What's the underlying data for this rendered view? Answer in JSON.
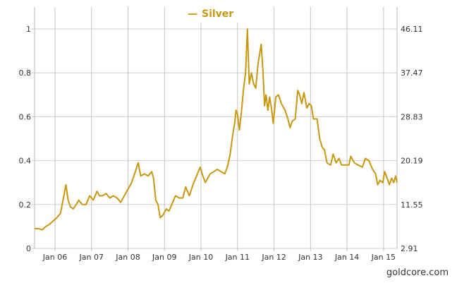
{
  "chart_data": {
    "type": "line",
    "title": "",
    "legend": {
      "label": "Silver",
      "symbol": "—",
      "placement": "top-center"
    },
    "xlabel": "",
    "ylabel": "",
    "x_ticks": [
      {
        "year": 2006,
        "label": "Jan 06"
      },
      {
        "year": 2007,
        "label": "Jan 07"
      },
      {
        "year": 2008,
        "label": "Jan 08"
      },
      {
        "year": 2009,
        "label": "Jan 09"
      },
      {
        "year": 2010,
        "label": "Jan 10"
      },
      {
        "year": 2011,
        "label": "Jan 11"
      },
      {
        "year": 2012,
        "label": "Jan 12"
      },
      {
        "year": 2013,
        "label": "Jan 13"
      },
      {
        "year": 2014,
        "label": "Jan 14"
      },
      {
        "year": 2015,
        "label": "Jan 15"
      }
    ],
    "xlim": [
      2005.44,
      2015.37
    ],
    "ylim": [
      0,
      1
    ],
    "y_ticks_left": [
      "0",
      "0.2",
      "0.4",
      "0.6",
      "0.8",
      "1"
    ],
    "y_ticks_right": [
      "2.91",
      "11.55",
      "20.19",
      "28.83",
      "37.47",
      "46.11"
    ],
    "grid": true,
    "color": "#c9980e",
    "series": [
      {
        "name": "Silver",
        "points": [
          [
            2005.44,
            0.09
          ],
          [
            2005.55,
            0.09
          ],
          [
            2005.65,
            0.085
          ],
          [
            2005.75,
            0.1
          ],
          [
            2005.85,
            0.11
          ],
          [
            2005.95,
            0.125
          ],
          [
            2006.05,
            0.14
          ],
          [
            2006.15,
            0.16
          ],
          [
            2006.22,
            0.22
          ],
          [
            2006.3,
            0.29
          ],
          [
            2006.36,
            0.22
          ],
          [
            2006.42,
            0.19
          ],
          [
            2006.5,
            0.18
          ],
          [
            2006.58,
            0.2
          ],
          [
            2006.65,
            0.22
          ],
          [
            2006.75,
            0.2
          ],
          [
            2006.85,
            0.2
          ],
          [
            2006.95,
            0.24
          ],
          [
            2007.05,
            0.22
          ],
          [
            2007.15,
            0.26
          ],
          [
            2007.22,
            0.24
          ],
          [
            2007.3,
            0.24
          ],
          [
            2007.4,
            0.25
          ],
          [
            2007.5,
            0.23
          ],
          [
            2007.6,
            0.24
          ],
          [
            2007.7,
            0.23
          ],
          [
            2007.8,
            0.21
          ],
          [
            2007.9,
            0.24
          ],
          [
            2008.0,
            0.27
          ],
          [
            2008.1,
            0.3
          ],
          [
            2008.2,
            0.35
          ],
          [
            2008.28,
            0.39
          ],
          [
            2008.35,
            0.33
          ],
          [
            2008.45,
            0.34
          ],
          [
            2008.55,
            0.33
          ],
          [
            2008.65,
            0.35
          ],
          [
            2008.7,
            0.32
          ],
          [
            2008.76,
            0.22
          ],
          [
            2008.82,
            0.2
          ],
          [
            2008.88,
            0.14
          ],
          [
            2008.95,
            0.15
          ],
          [
            2009.05,
            0.18
          ],
          [
            2009.12,
            0.17
          ],
          [
            2009.2,
            0.2
          ],
          [
            2009.3,
            0.24
          ],
          [
            2009.4,
            0.23
          ],
          [
            2009.5,
            0.23
          ],
          [
            2009.58,
            0.28
          ],
          [
            2009.68,
            0.24
          ],
          [
            2009.78,
            0.29
          ],
          [
            2009.9,
            0.34
          ],
          [
            2009.98,
            0.37
          ],
          [
            2010.05,
            0.33
          ],
          [
            2010.12,
            0.3
          ],
          [
            2010.25,
            0.34
          ],
          [
            2010.35,
            0.35
          ],
          [
            2010.45,
            0.36
          ],
          [
            2010.55,
            0.35
          ],
          [
            2010.65,
            0.34
          ],
          [
            2010.72,
            0.37
          ],
          [
            2010.8,
            0.43
          ],
          [
            2010.87,
            0.52
          ],
          [
            2010.92,
            0.57
          ],
          [
            2010.96,
            0.63
          ],
          [
            2011.0,
            0.61
          ],
          [
            2011.05,
            0.54
          ],
          [
            2011.1,
            0.61
          ],
          [
            2011.16,
            0.72
          ],
          [
            2011.22,
            0.8
          ],
          [
            2011.27,
            1.0
          ],
          [
            2011.32,
            0.75
          ],
          [
            2011.38,
            0.8
          ],
          [
            2011.44,
            0.75
          ],
          [
            2011.5,
            0.73
          ],
          [
            2011.56,
            0.84
          ],
          [
            2011.6,
            0.88
          ],
          [
            2011.65,
            0.93
          ],
          [
            2011.7,
            0.8
          ],
          [
            2011.74,
            0.65
          ],
          [
            2011.78,
            0.7
          ],
          [
            2011.83,
            0.63
          ],
          [
            2011.88,
            0.69
          ],
          [
            2011.93,
            0.64
          ],
          [
            2011.98,
            0.57
          ],
          [
            2012.05,
            0.69
          ],
          [
            2012.12,
            0.7
          ],
          [
            2012.2,
            0.66
          ],
          [
            2012.3,
            0.63
          ],
          [
            2012.38,
            0.59
          ],
          [
            2012.44,
            0.55
          ],
          [
            2012.5,
            0.58
          ],
          [
            2012.58,
            0.59
          ],
          [
            2012.65,
            0.72
          ],
          [
            2012.7,
            0.7
          ],
          [
            2012.76,
            0.66
          ],
          [
            2012.82,
            0.71
          ],
          [
            2012.9,
            0.64
          ],
          [
            2012.96,
            0.66
          ],
          [
            2013.02,
            0.65
          ],
          [
            2013.08,
            0.59
          ],
          [
            2013.18,
            0.59
          ],
          [
            2013.25,
            0.5
          ],
          [
            2013.32,
            0.46
          ],
          [
            2013.38,
            0.45
          ],
          [
            2013.45,
            0.39
          ],
          [
            2013.55,
            0.38
          ],
          [
            2013.62,
            0.43
          ],
          [
            2013.7,
            0.39
          ],
          [
            2013.78,
            0.41
          ],
          [
            2013.85,
            0.38
          ],
          [
            2013.95,
            0.38
          ],
          [
            2014.05,
            0.38
          ],
          [
            2014.1,
            0.42
          ],
          [
            2014.2,
            0.39
          ],
          [
            2014.3,
            0.38
          ],
          [
            2014.42,
            0.37
          ],
          [
            2014.5,
            0.41
          ],
          [
            2014.6,
            0.4
          ],
          [
            2014.7,
            0.36
          ],
          [
            2014.78,
            0.34
          ],
          [
            2014.84,
            0.29
          ],
          [
            2014.9,
            0.31
          ],
          [
            2014.98,
            0.3
          ],
          [
            2015.03,
            0.35
          ],
          [
            2015.1,
            0.32
          ],
          [
            2015.16,
            0.29
          ],
          [
            2015.22,
            0.32
          ],
          [
            2015.28,
            0.3
          ],
          [
            2015.33,
            0.33
          ],
          [
            2015.37,
            0.3
          ]
        ]
      }
    ],
    "credit": "goldcore.com"
  }
}
